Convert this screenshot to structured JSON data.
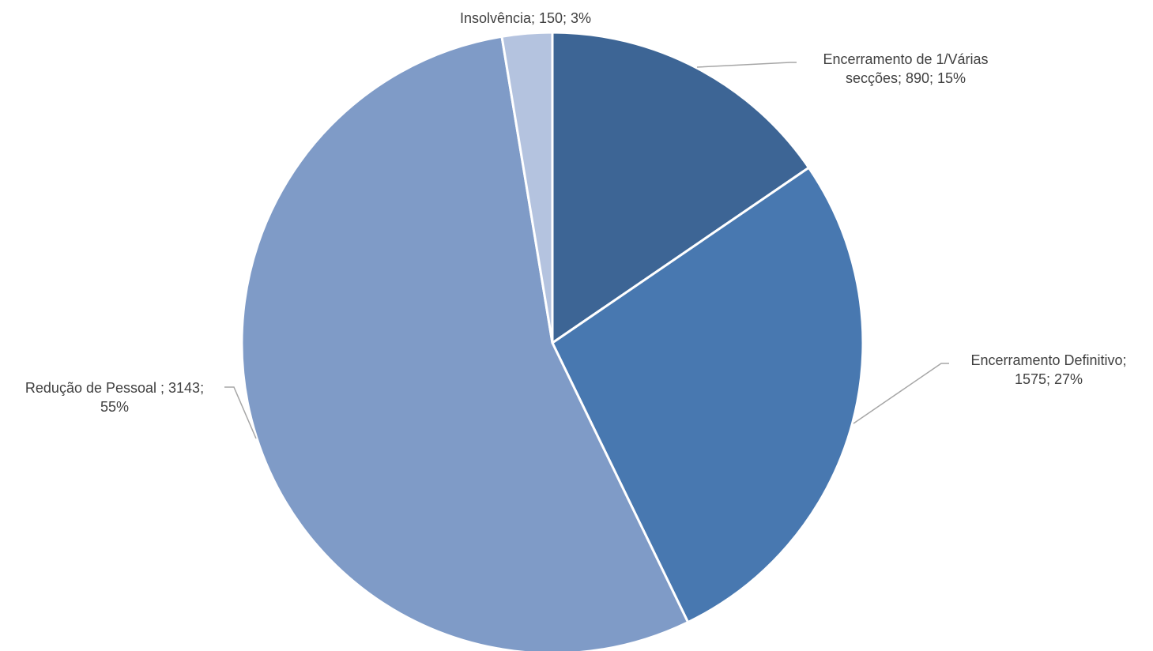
{
  "chart_data": {
    "type": "pie",
    "slices": [
      {
        "category": "Encerramento de 1/Várias secções",
        "value": 890,
        "percent": "15%",
        "color": "#3d6595",
        "label_lines": [
          "Encerramento de 1/Várias",
          "secções; 890; 15%"
        ]
      },
      {
        "category": "Encerramento Definitivo",
        "value": 1575,
        "percent": "27%",
        "color": "#4878b0",
        "label_lines": [
          "Encerramento Definitivo;",
          "1575; 27%"
        ]
      },
      {
        "category": "Redução de Pessoal",
        "value": 3143,
        "percent": "55%",
        "color": "#7f9bc7",
        "label_lines": [
          "Redução de Pessoal ; 3143;",
          "55%"
        ]
      },
      {
        "category": "Insolvência",
        "value": 150,
        "percent": "3%",
        "color": "#b4c3df",
        "label_lines": [
          "Insolvência; 150; 3%"
        ]
      }
    ],
    "start": "12 o'clock",
    "direction": "clockwise",
    "legend": "none"
  }
}
